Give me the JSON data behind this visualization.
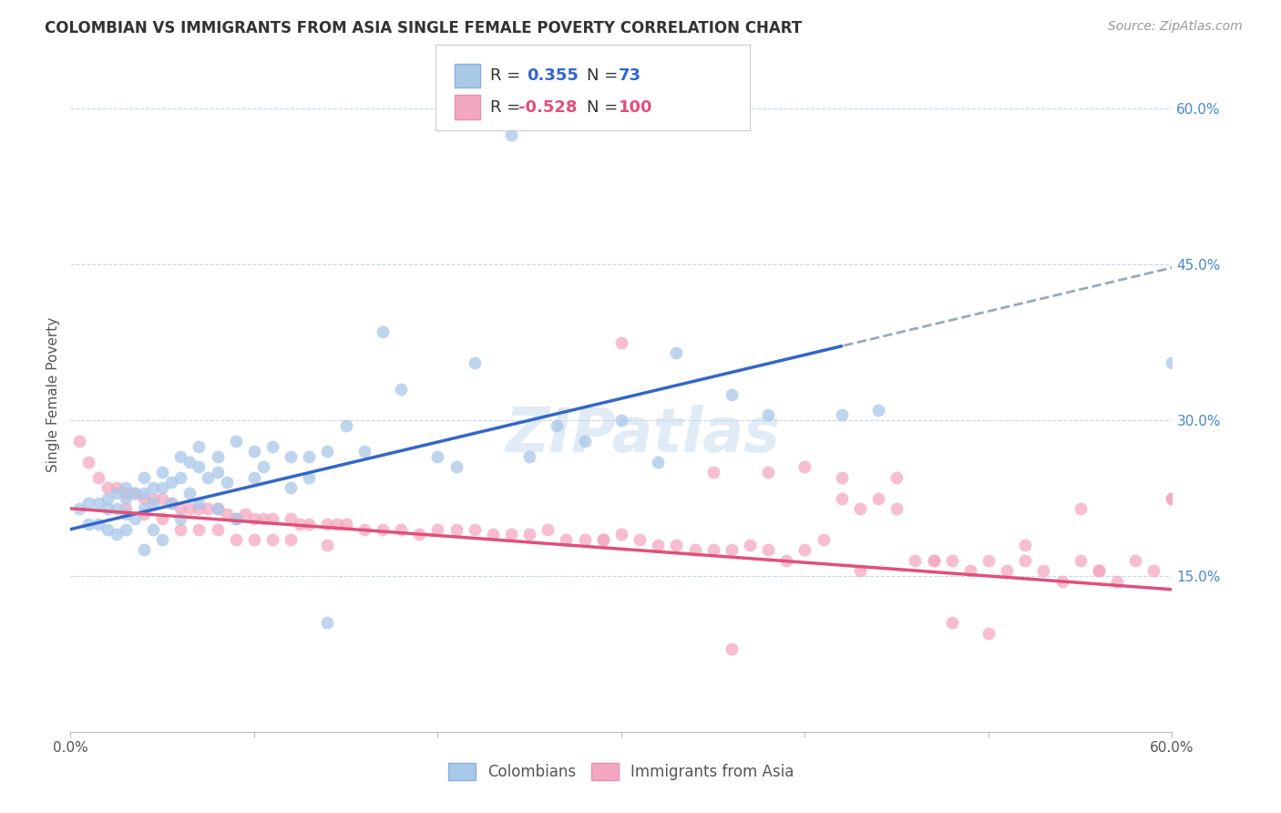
{
  "title": "COLOMBIAN VS IMMIGRANTS FROM ASIA SINGLE FEMALE POVERTY CORRELATION CHART",
  "source": "Source: ZipAtlas.com",
  "ylabel": "Single Female Poverty",
  "xlim": [
    0.0,
    0.6
  ],
  "ylim": [
    0.0,
    0.65
  ],
  "blue_color": "#a8c8e8",
  "pink_color": "#f4a8c0",
  "blue_line_color": "#3366cc",
  "pink_line_color": "#e0507a",
  "blue_line_color_dashed": "#99aabb",
  "R_blue": "0.355",
  "N_blue": "73",
  "R_pink": "-0.528",
  "N_pink": "100",
  "watermark": "ZIPatlas",
  "blue_scatter_x": [
    0.005,
    0.01,
    0.01,
    0.015,
    0.015,
    0.02,
    0.02,
    0.02,
    0.025,
    0.025,
    0.025,
    0.03,
    0.03,
    0.03,
    0.03,
    0.035,
    0.035,
    0.04,
    0.04,
    0.04,
    0.04,
    0.045,
    0.045,
    0.045,
    0.05,
    0.05,
    0.05,
    0.055,
    0.055,
    0.06,
    0.06,
    0.06,
    0.065,
    0.065,
    0.07,
    0.07,
    0.07,
    0.075,
    0.08,
    0.08,
    0.08,
    0.085,
    0.09,
    0.09,
    0.1,
    0.1,
    0.105,
    0.11,
    0.12,
    0.12,
    0.13,
    0.13,
    0.14,
    0.14,
    0.15,
    0.16,
    0.17,
    0.18,
    0.2,
    0.21,
    0.22,
    0.24,
    0.25,
    0.265,
    0.28,
    0.3,
    0.32,
    0.33,
    0.36,
    0.38,
    0.42,
    0.44,
    0.6
  ],
  "blue_scatter_y": [
    0.215,
    0.22,
    0.2,
    0.22,
    0.2,
    0.225,
    0.215,
    0.195,
    0.23,
    0.215,
    0.19,
    0.235,
    0.225,
    0.21,
    0.195,
    0.23,
    0.205,
    0.245,
    0.23,
    0.215,
    0.175,
    0.235,
    0.22,
    0.195,
    0.25,
    0.235,
    0.185,
    0.24,
    0.22,
    0.265,
    0.245,
    0.205,
    0.26,
    0.23,
    0.275,
    0.255,
    0.22,
    0.245,
    0.265,
    0.25,
    0.215,
    0.24,
    0.28,
    0.205,
    0.27,
    0.245,
    0.255,
    0.275,
    0.265,
    0.235,
    0.265,
    0.245,
    0.27,
    0.105,
    0.295,
    0.27,
    0.385,
    0.33,
    0.265,
    0.255,
    0.355,
    0.575,
    0.265,
    0.295,
    0.28,
    0.3,
    0.26,
    0.365,
    0.325,
    0.305,
    0.305,
    0.31,
    0.355
  ],
  "pink_scatter_x": [
    0.005,
    0.01,
    0.015,
    0.02,
    0.025,
    0.03,
    0.03,
    0.035,
    0.04,
    0.04,
    0.045,
    0.05,
    0.05,
    0.055,
    0.06,
    0.06,
    0.065,
    0.07,
    0.07,
    0.075,
    0.08,
    0.08,
    0.085,
    0.09,
    0.09,
    0.095,
    0.1,
    0.1,
    0.105,
    0.11,
    0.11,
    0.12,
    0.12,
    0.125,
    0.13,
    0.14,
    0.14,
    0.145,
    0.15,
    0.16,
    0.17,
    0.18,
    0.19,
    0.2,
    0.21,
    0.22,
    0.23,
    0.24,
    0.25,
    0.26,
    0.27,
    0.28,
    0.29,
    0.3,
    0.31,
    0.32,
    0.33,
    0.34,
    0.35,
    0.36,
    0.37,
    0.38,
    0.39,
    0.4,
    0.41,
    0.42,
    0.43,
    0.44,
    0.45,
    0.46,
    0.47,
    0.48,
    0.49,
    0.5,
    0.51,
    0.52,
    0.53,
    0.54,
    0.55,
    0.56,
    0.57,
    0.58,
    0.59,
    0.6,
    0.3,
    0.4,
    0.45,
    0.5,
    0.55,
    0.35,
    0.42,
    0.48,
    0.38,
    0.52,
    0.47,
    0.43,
    0.56,
    0.36,
    0.6,
    0.29
  ],
  "pink_scatter_y": [
    0.28,
    0.26,
    0.245,
    0.235,
    0.235,
    0.23,
    0.215,
    0.23,
    0.225,
    0.21,
    0.225,
    0.225,
    0.205,
    0.22,
    0.215,
    0.195,
    0.215,
    0.215,
    0.195,
    0.215,
    0.215,
    0.195,
    0.21,
    0.205,
    0.185,
    0.21,
    0.205,
    0.185,
    0.205,
    0.205,
    0.185,
    0.205,
    0.185,
    0.2,
    0.2,
    0.2,
    0.18,
    0.2,
    0.2,
    0.195,
    0.195,
    0.195,
    0.19,
    0.195,
    0.195,
    0.195,
    0.19,
    0.19,
    0.19,
    0.195,
    0.185,
    0.185,
    0.185,
    0.19,
    0.185,
    0.18,
    0.18,
    0.175,
    0.175,
    0.175,
    0.18,
    0.175,
    0.165,
    0.175,
    0.185,
    0.225,
    0.215,
    0.225,
    0.215,
    0.165,
    0.165,
    0.165,
    0.155,
    0.165,
    0.155,
    0.165,
    0.155,
    0.145,
    0.165,
    0.155,
    0.145,
    0.165,
    0.155,
    0.225,
    0.375,
    0.255,
    0.245,
    0.095,
    0.215,
    0.25,
    0.245,
    0.105,
    0.25,
    0.18,
    0.165,
    0.155,
    0.155,
    0.08,
    0.225,
    0.185
  ]
}
